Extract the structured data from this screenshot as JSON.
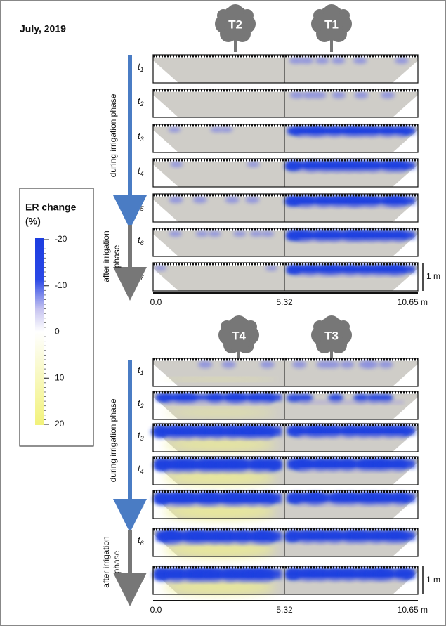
{
  "title": "July, 2019",
  "legend": {
    "title": "ER change",
    "unit": "(%)",
    "ticks": [
      -20,
      -10,
      0,
      10,
      20
    ]
  },
  "time_symbol": "t",
  "time_indices": [
    "1",
    "2",
    "3",
    "4",
    "5",
    "6",
    "7"
  ],
  "sections": [
    {
      "trees": [
        "T2",
        "T1"
      ],
      "during_phase": "during irrigation phase",
      "after_phase": [
        "after irrigation",
        "phase"
      ],
      "distance_labels": [
        "0.0",
        "5.32",
        "10.65 m"
      ],
      "scale_bar": "1 m"
    },
    {
      "trees": [
        "T4",
        "T3"
      ],
      "during_phase": "during irrigation phase",
      "after_phase": [
        "after irrigation",
        "phase"
      ],
      "distance_labels": [
        "0.0",
        "5.32",
        "10.65 m"
      ],
      "scale_bar": "1 m"
    }
  ]
}
